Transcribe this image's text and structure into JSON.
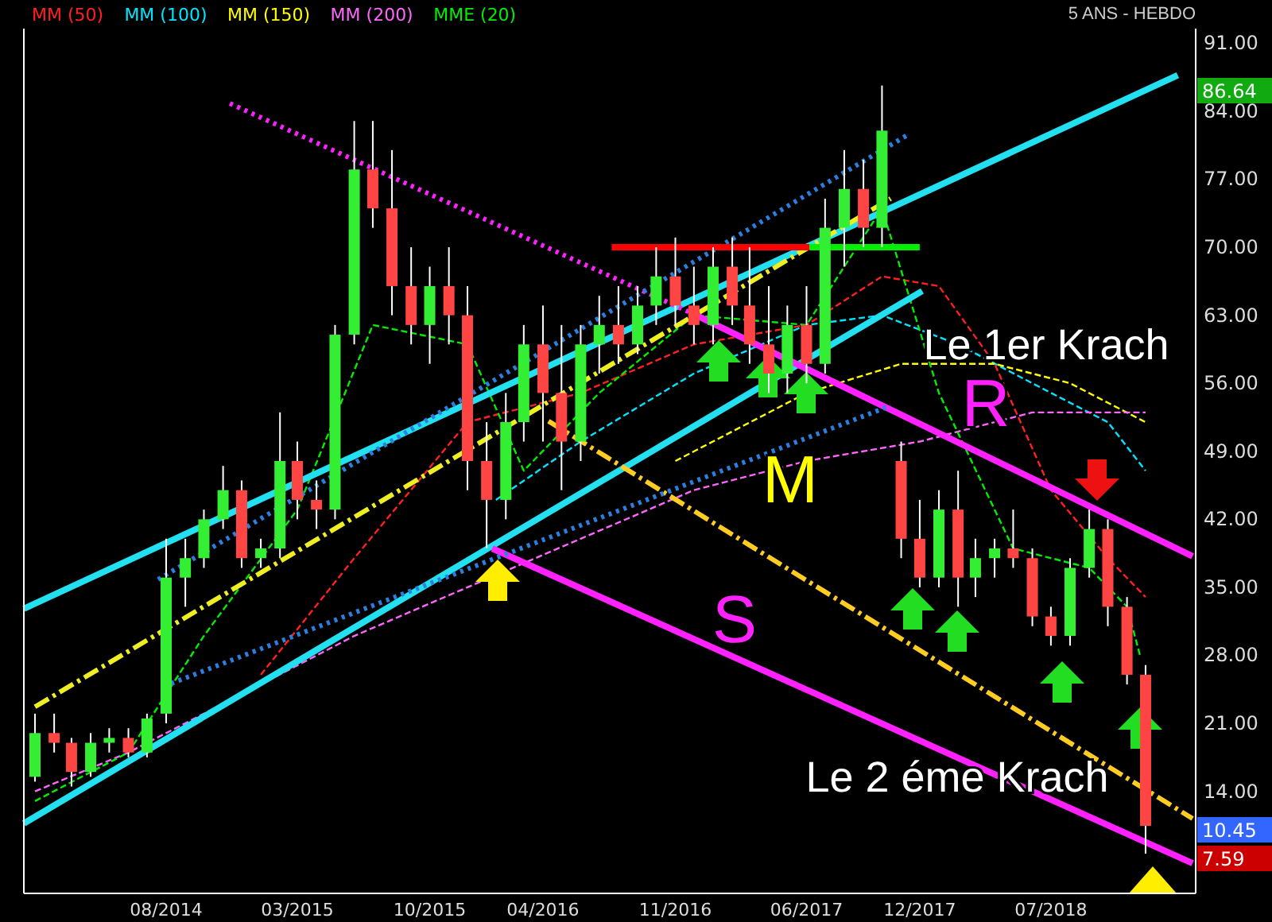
{
  "chart_data": {
    "type": "candlestick",
    "x": [
      "2014-01",
      "2014-02",
      "2014-03",
      "2014-04",
      "2014-05",
      "2014-06",
      "2014-07",
      "2014-08",
      "2014-09",
      "2014-10",
      "2014-11",
      "2014-12",
      "2015-01",
      "2015-02",
      "2015-03",
      "2015-04",
      "2015-05",
      "2015-06",
      "2015-07",
      "2015-08",
      "2015-09",
      "2015-10",
      "2015-11",
      "2015-12",
      "2016-01",
      "2016-02",
      "2016-03",
      "2016-04",
      "2016-05",
      "2016-06",
      "2016-07",
      "2016-08",
      "2016-09",
      "2016-10",
      "2016-11",
      "2016-12",
      "2017-01",
      "2017-02",
      "2017-03",
      "2017-04",
      "2017-05",
      "2017-06",
      "2017-07",
      "2017-08",
      "2017-09",
      "2017-10",
      "2017-11",
      "2017-12",
      "2018-01",
      "2018-02",
      "2018-03",
      "2018-04",
      "2018-05",
      "2018-06",
      "2018-07",
      "2018-08",
      "2018-09",
      "2018-10",
      "2018-11",
      "2018-12"
    ],
    "ohlc": [
      [
        15.5,
        22,
        15,
        20
      ],
      [
        20,
        22,
        18,
        19
      ],
      [
        19,
        19.5,
        14.5,
        16
      ],
      [
        16,
        20,
        15.5,
        19
      ],
      [
        19,
        20.5,
        18,
        19.5
      ],
      [
        19.5,
        20.5,
        17.5,
        18
      ],
      [
        18,
        22,
        17.5,
        21.5
      ],
      [
        22,
        40,
        21,
        36
      ],
      [
        36,
        40,
        33,
        38
      ],
      [
        38,
        43,
        37,
        42
      ],
      [
        42,
        47.5,
        41,
        45
      ],
      [
        45,
        46,
        37,
        38
      ],
      [
        38,
        40,
        37,
        39
      ],
      [
        39,
        53,
        38,
        48
      ],
      [
        48,
        50,
        42,
        44
      ],
      [
        44,
        46,
        41,
        43
      ],
      [
        43,
        62,
        42,
        61
      ],
      [
        61,
        83,
        60,
        78
      ],
      [
        78,
        83,
        72,
        74
      ],
      [
        74,
        80,
        63,
        66
      ],
      [
        66,
        70,
        60,
        62
      ],
      [
        62,
        68,
        58,
        66
      ],
      [
        66,
        70,
        60,
        63
      ],
      [
        63,
        66,
        45,
        48
      ],
      [
        48,
        52,
        39,
        44
      ],
      [
        44,
        55,
        42,
        52
      ],
      [
        52,
        62,
        50,
        60
      ],
      [
        60,
        64,
        50,
        55
      ],
      [
        55,
        62,
        45,
        50
      ],
      [
        50,
        62,
        48,
        60
      ],
      [
        60,
        65,
        57,
        62
      ],
      [
        62,
        66,
        58,
        60
      ],
      [
        60,
        66,
        59,
        64
      ],
      [
        64,
        70,
        62,
        67
      ],
      [
        67,
        71,
        62,
        64
      ],
      [
        64,
        68,
        60,
        62
      ],
      [
        62,
        70,
        60,
        68
      ],
      [
        68,
        71,
        62,
        64
      ],
      [
        64,
        70,
        58,
        60
      ],
      [
        60,
        66,
        55,
        57
      ],
      [
        57,
        64,
        55,
        62
      ],
      [
        62,
        66,
        56,
        58
      ],
      [
        58,
        75,
        57,
        72
      ],
      [
        72,
        80,
        68,
        76
      ],
      [
        76,
        79,
        70,
        72
      ],
      [
        72,
        86.64,
        70,
        82
      ],
      [
        48,
        50,
        38,
        40
      ],
      [
        40,
        44,
        35,
        36
      ],
      [
        36,
        45,
        35,
        43
      ],
      [
        43,
        47,
        33,
        36
      ],
      [
        36,
        40,
        34,
        38
      ],
      [
        38,
        40,
        36,
        39
      ],
      [
        39,
        43,
        37,
        38
      ],
      [
        38,
        39,
        31,
        32
      ],
      [
        32,
        33,
        29,
        30
      ],
      [
        30,
        38,
        29,
        37
      ],
      [
        37,
        43,
        36,
        41
      ],
      [
        41,
        42,
        31,
        33
      ],
      [
        33,
        34,
        25,
        26
      ],
      [
        26,
        27,
        7.59,
        10.45
      ]
    ],
    "colors": [
      "#33ee33",
      "#ff4444",
      "#ff4444",
      "#33ee33",
      "#33ee33",
      "#ff4444",
      "#33ee33",
      "#33ee33",
      "#33ee33",
      "#33ee33",
      "#33ee33",
      "#ff4444",
      "#33ee33",
      "#33ee33",
      "#ff4444",
      "#ff4444",
      "#33ee33",
      "#33ee33",
      "#ff4444",
      "#ff4444",
      "#ff4444",
      "#33ee33",
      "#ff4444",
      "#ff4444",
      "#ff4444",
      "#33ee33",
      "#33ee33",
      "#ff4444",
      "#ff4444",
      "#33ee33",
      "#33ee33",
      "#ff4444",
      "#33ee33",
      "#33ee33",
      "#ff4444",
      "#ff4444",
      "#33ee33",
      "#ff4444",
      "#ff4444",
      "#ff4444",
      "#33ee33",
      "#ff4444",
      "#33ee33",
      "#33ee33",
      "#ff4444",
      "#33ee33",
      "#ff4444",
      "#ff4444",
      "#33ee33",
      "#ff4444",
      "#33ee33",
      "#33ee33",
      "#ff4444",
      "#ff4444",
      "#ff4444",
      "#33ee33",
      "#33ee33",
      "#ff4444",
      "#ff4444",
      "#ff4444"
    ],
    "series": [
      {
        "name": "MM (50)",
        "type": "line",
        "color": "#ff2020",
        "line_style": "dashed",
        "x": [
          "2015-01",
          "2015-06",
          "2015-12",
          "2016-06",
          "2016-12",
          "2017-06",
          "2017-10",
          "2018-01",
          "2018-04",
          "2018-07",
          "2018-10",
          "2018-12"
        ],
        "values": [
          26,
          38,
          52,
          55,
          60,
          62,
          67,
          66,
          58,
          45,
          38,
          34
        ]
      },
      {
        "name": "MM (100)",
        "type": "line",
        "color": "#00e5ff",
        "line_style": "dashed",
        "x": [
          "2016-01-16",
          "2016-06",
          "2016-12",
          "2017-06",
          "2017-10",
          "2018-02",
          "2018-06",
          "2018-10",
          "2018-12"
        ],
        "values": [
          44,
          50,
          57,
          62,
          63,
          60,
          56,
          52,
          47
        ]
      },
      {
        "name": "MM (150)",
        "type": "line",
        "color": "#ffff00",
        "line_style": "dashed",
        "x": [
          "2016-11",
          "2017-06",
          "2017-11",
          "2018-04",
          "2018-08",
          "2018-12"
        ],
        "values": [
          48,
          55,
          58,
          58,
          56,
          52
        ]
      },
      {
        "name": "MM (200)",
        "type": "line",
        "color": "#ff66ff",
        "line_style": "dashed",
        "x": [
          "2014-01",
          "2014-06",
          "2014-12",
          "2015-06",
          "2015-12",
          "2016-06",
          "2016-12",
          "2017-06",
          "2017-12",
          "2018-06",
          "2018-12"
        ],
        "values": [
          14,
          18,
          24,
          30,
          35,
          40,
          45,
          48,
          50,
          53,
          53
        ]
      },
      {
        "name": "MME (20)",
        "type": "line",
        "color": "#00ee00",
        "line_style": "dashed",
        "x": [
          "2014-01",
          "2014-06",
          "2014-10",
          "2015-03",
          "2015-07",
          "2015-12",
          "2016-03",
          "2016-07",
          "2016-12",
          "2017-06",
          "2017-10",
          "2018-01",
          "2018-05",
          "2018-09",
          "2018-11",
          "2018-11-22"
        ],
        "values": [
          13,
          18,
          30,
          43,
          62,
          60,
          47,
          55,
          63,
          62,
          74,
          55,
          39,
          37,
          33,
          28
        ]
      },
      {
        "type": "line",
        "color": "#22e0f0",
        "line_style": "solid",
        "x": [
          "2013-12-14",
          "2019-01-22"
        ],
        "values": [
          32.8,
          87.7
        ]
      },
      {
        "type": "line",
        "color": "#22e0f0",
        "line_style": "solid",
        "x": [
          "2013-12-14",
          "2017-12-05"
        ],
        "values": [
          10.7,
          65.5
        ]
      },
      {
        "type": "line",
        "color": "#ff22ff",
        "line_style": "solid",
        "x": [
          "2016-01-10",
          "2019-02-15"
        ],
        "values": [
          39,
          6.6
        ]
      },
      {
        "type": "line",
        "color": "#ff22ff",
        "line_style": "solid",
        "x": [
          "2016-11-28",
          "2019-02-15"
        ],
        "values": [
          63.2,
          38.2
        ]
      },
      {
        "type": "line",
        "color": "#ff22ff",
        "line_style": "dotted",
        "x": [
          "2014-11-12",
          "2016-11-28"
        ],
        "values": [
          84.8,
          63.2
        ]
      },
      {
        "type": "line",
        "color": "#eeee22",
        "line_style": "dashed",
        "x": [
          "2014-01-01",
          "2017-10-15"
        ],
        "values": [
          22.7,
          75
        ]
      },
      {
        "type": "line",
        "color": "#ffcc22",
        "line_style": "dashed",
        "x": [
          "2016-04-10",
          "2019-02-15"
        ],
        "values": [
          52.1,
          11.2
        ]
      },
      {
        "type": "line",
        "color": "#2a7fe0",
        "line_style": "dotted",
        "x": [
          "2014-07-19",
          "2017-11-10"
        ],
        "values": [
          35.8,
          81.5
        ]
      },
      {
        "type": "line",
        "color": "#2a7fe0",
        "line_style": "dotted",
        "x": [
          "2014-08-09",
          "2017-10-15"
        ],
        "values": [
          25.1,
          53.7
        ]
      },
      {
        "type": "line",
        "color": "#ff0000",
        "line_style": "solid",
        "x": [
          "2016-07-21",
          "2017-06-06"
        ],
        "values": [
          70,
          70
        ]
      },
      {
        "type": "line",
        "color": "#00ee00",
        "line_style": "solid",
        "x": [
          "2017-06-06",
          "2017-12-01"
        ],
        "values": [
          70,
          70
        ]
      }
    ],
    "xlim": [
      "2013-12-14",
      "2019-02-20"
    ],
    "xticks": [
      {
        "value": "2014-08",
        "label": "08/2014"
      },
      {
        "value": "2015-03",
        "label": "03/2015"
      },
      {
        "value": "2015-10",
        "label": "10/2015"
      },
      {
        "value": "2016-04",
        "label": "04/2016"
      },
      {
        "value": "2016-11",
        "label": "11/2016"
      },
      {
        "value": "2017-06",
        "label": "06/2017"
      },
      {
        "value": "2017-12",
        "label": "12/2017"
      },
      {
        "value": "2018-07",
        "label": "07/2018"
      }
    ],
    "ylim": [
      3.5,
      92.5
    ],
    "yticks": [
      {
        "value": 14,
        "label": "14.00"
      },
      {
        "value": 21,
        "label": "21.00"
      },
      {
        "value": 28,
        "label": "28.00"
      },
      {
        "value": 35,
        "label": "35.00"
      },
      {
        "value": 42,
        "label": "42.00"
      },
      {
        "value": 49,
        "label": "49.00"
      },
      {
        "value": 56,
        "label": "56.00"
      },
      {
        "value": 63,
        "label": "63.00"
      },
      {
        "value": 70,
        "label": "70.00"
      },
      {
        "value": 77,
        "label": "77.00"
      },
      {
        "value": 84,
        "label": "84.00"
      },
      {
        "value": 91,
        "label": "91.00"
      }
    ],
    "grid": false,
    "legend": "top left",
    "annotations": [
      "5 ANS - HEBDO",
      "Le 1er Krach",
      "R",
      "M",
      "S",
      "Le 2 éme Krach",
      "86.64",
      "10.45",
      "7.59"
    ]
  }
}
